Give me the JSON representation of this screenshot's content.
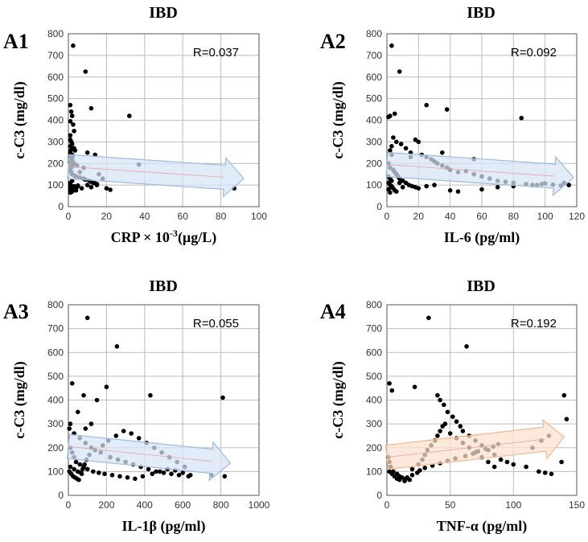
{
  "chart_data": [
    {
      "type": "scatter",
      "panel_label": "A1",
      "title": "IBD",
      "xlabel": "CRP × 10-3(µg/L)",
      "xlabel_base": "CRP × 10",
      "xlabel_sup": "-3",
      "xlabel_rest": "(µg/L)",
      "ylabel": "c-C3 (mg/dl)",
      "xlim": [
        0,
        100
      ],
      "ylim": [
        0,
        800
      ],
      "xticks": [
        "0",
        "20",
        "40",
        "60",
        "80",
        "100"
      ],
      "yticks": [
        "0",
        "100",
        "200",
        "300",
        "400",
        "500",
        "600",
        "700",
        "800"
      ],
      "r_text": "R=0.037",
      "trend": {
        "direction": "down",
        "x": [
          0,
          92
        ],
        "y": [
          185,
          130
        ],
        "color": "#d6e4f5",
        "edge": "#9fbbe0"
      },
      "points": {
        "x": [
          2.5,
          9,
          12,
          32,
          1,
          1.5,
          2,
          1,
          2.5,
          3,
          1,
          1.5,
          1,
          2,
          3.5,
          1,
          2,
          1,
          1.5,
          2,
          3,
          1,
          2,
          1,
          1,
          1.5,
          2,
          3,
          4,
          6,
          8,
          9,
          11,
          12,
          13,
          14,
          15,
          10,
          5,
          3,
          2,
          1,
          1,
          2,
          3,
          4,
          1,
          2,
          1.5,
          1,
          3,
          5,
          7,
          12,
          15,
          20,
          22,
          10,
          8,
          6,
          4,
          2,
          1,
          1,
          2,
          3,
          4,
          37,
          87,
          14,
          16,
          18,
          1,
          2,
          3,
          1.2,
          2.2,
          1.8,
          0.8,
          4.5
        ],
        "y": [
          745,
          625,
          455,
          420,
          470,
          440,
          420,
          395,
          380,
          350,
          330,
          300,
          280,
          270,
          260,
          250,
          240,
          230,
          220,
          210,
          200,
          195,
          185,
          175,
          165,
          160,
          150,
          145,
          140,
          135,
          130,
          125,
          120,
          115,
          110,
          108,
          105,
          100,
          98,
          95,
          92,
          90,
          85,
          80,
          78,
          75,
          72,
          70,
          68,
          65,
          88,
          95,
          85,
          90,
          100,
          85,
          78,
          250,
          180,
          160,
          140,
          120,
          110,
          100,
          95,
          90,
          85,
          195,
          85,
          240,
          150,
          130,
          310,
          290,
          270,
          260,
          230,
          215,
          205,
          190
        ]
      }
    },
    {
      "type": "scatter",
      "panel_label": "A2",
      "title": "IBD",
      "xlabel": "IL-6 (pg/ml)",
      "ylabel": "c-C3 (mg/dl)",
      "xlim": [
        0,
        120
      ],
      "ylim": [
        0,
        800
      ],
      "xticks": [
        "0",
        "20",
        "40",
        "60",
        "80",
        "100",
        "120"
      ],
      "yticks": [
        "0",
        "100",
        "200",
        "300",
        "400",
        "500",
        "600",
        "700",
        "800"
      ],
      "r_text": "R=0.092",
      "trend": {
        "direction": "down",
        "x": [
          0,
          118
        ],
        "y": [
          195,
          135
        ],
        "color": "#d6e4f5",
        "edge": "#9fbbe0"
      },
      "points": {
        "x": [
          3,
          8,
          25,
          85,
          38,
          5,
          2,
          1,
          4,
          6,
          3,
          9,
          12,
          15,
          18,
          20,
          22,
          25,
          28,
          30,
          32,
          35,
          38,
          40,
          45,
          50,
          55,
          60,
          65,
          70,
          75,
          80,
          88,
          95,
          100,
          105,
          110,
          115,
          2,
          3,
          1,
          2,
          4,
          5,
          6,
          7,
          8,
          10,
          12,
          14,
          16,
          18,
          1,
          2,
          3,
          1,
          2,
          3,
          1,
          4,
          5,
          6,
          2,
          3,
          8,
          10,
          20,
          25,
          30,
          40,
          45,
          60,
          70,
          80,
          92,
          98,
          112,
          15,
          35,
          55
        ],
        "y": [
          745,
          625,
          470,
          410,
          450,
          430,
          420,
          415,
          320,
          300,
          280,
          290,
          270,
          250,
          310,
          300,
          240,
          230,
          220,
          210,
          200,
          190,
          180,
          170,
          160,
          165,
          150,
          140,
          130,
          120,
          115,
          110,
          105,
          100,
          108,
          102,
          98,
          100,
          260,
          240,
          200,
          180,
          170,
          160,
          150,
          140,
          130,
          120,
          110,
          100,
          95,
          90,
          140,
          130,
          120,
          110,
          100,
          90,
          80,
          85,
          75,
          70,
          65,
          95,
          110,
          90,
          85,
          95,
          100,
          75,
          70,
          80,
          90,
          95,
          100,
          105,
          110,
          230,
          250,
          220
        ]
      }
    },
    {
      "type": "scatter",
      "panel_label": "A3",
      "title": "IBD",
      "xlabel": "IL-1β (pg/ml)",
      "ylabel": "c-C3 (mg/dl)",
      "xlim": [
        0,
        1000
      ],
      "ylim": [
        0,
        800
      ],
      "xticks": [
        "0",
        "200",
        "400",
        "600",
        "800",
        "1000"
      ],
      "yticks": [
        "0",
        "100",
        "200",
        "300",
        "400",
        "500",
        "600",
        "700",
        "800"
      ],
      "r_text": "R=0.055",
      "trend": {
        "direction": "down",
        "x": [
          0,
          850
        ],
        "y": [
          205,
          135
        ],
        "color": "#d6e4f5",
        "edge": "#9fbbe0"
      },
      "points": {
        "x": [
          100,
          255,
          810,
          430,
          200,
          150,
          80,
          50,
          20,
          10,
          5,
          30,
          60,
          90,
          120,
          170,
          220,
          260,
          300,
          340,
          380,
          420,
          460,
          500,
          540,
          580,
          630,
          750,
          820,
          10,
          20,
          30,
          40,
          60,
          80,
          100,
          130,
          160,
          190,
          230,
          270,
          310,
          350,
          390,
          440,
          480,
          520,
          560,
          600,
          640,
          5,
          15,
          25,
          35,
          45,
          55,
          65,
          75,
          85,
          95,
          110,
          140,
          180,
          210,
          250,
          290,
          330,
          370,
          410,
          450,
          490,
          530,
          570,
          610,
          10,
          30,
          50,
          70,
          90,
          120
        ],
        "y": [
          745,
          625,
          410,
          420,
          455,
          400,
          420,
          350,
          470,
          300,
          280,
          260,
          240,
          220,
          200,
          180,
          160,
          150,
          140,
          130,
          120,
          110,
          100,
          95,
          90,
          85,
          80,
          85,
          80,
          200,
          180,
          160,
          140,
          130,
          120,
          110,
          100,
          95,
          90,
          85,
          80,
          75,
          70,
          80,
          90,
          100,
          110,
          105,
          95,
          85,
          100,
          90,
          80,
          75,
          70,
          65,
          95,
          110,
          130,
          150,
          170,
          190,
          210,
          230,
          250,
          270,
          260,
          240,
          220,
          200,
          180,
          160,
          140,
          120,
          120,
          110,
          100,
          90,
          280,
          300
        ]
      }
    },
    {
      "type": "scatter",
      "panel_label": "A4",
      "title": "IBD",
      "xlabel": "TNF-α (pg/ml)",
      "ylabel": "c-C3 (mg/dl)",
      "xlim": [
        0,
        150
      ],
      "ylim": [
        0,
        800
      ],
      "xticks": [
        "0",
        "50",
        "100",
        "150"
      ],
      "yticks": [
        "0",
        "100",
        "200",
        "300",
        "400",
        "500",
        "600",
        "700",
        "800"
      ],
      "r_text": "R=0.192",
      "trend": {
        "direction": "up",
        "x": [
          0,
          140
        ],
        "y": [
          160,
          245
        ],
        "color": "#fbe1cf",
        "edge": "#f3b78f"
      },
      "points": {
        "x": [
          33,
          63,
          2,
          4,
          22,
          40,
          42,
          45,
          48,
          52,
          55,
          58,
          60,
          65,
          70,
          75,
          80,
          85,
          90,
          95,
          100,
          110,
          120,
          125,
          130,
          140,
          142,
          138,
          1,
          2,
          3,
          5,
          8,
          10,
          12,
          15,
          18,
          20,
          25,
          28,
          30,
          32,
          35,
          38,
          40,
          42,
          44,
          46,
          50,
          55,
          60,
          65,
          70,
          75,
          80,
          85,
          2,
          4,
          6,
          8,
          10,
          14,
          16,
          20,
          24,
          26,
          30,
          36,
          42,
          48,
          54,
          62,
          68,
          72,
          78,
          84,
          88,
          115,
          122,
          128
        ],
        "y": [
          745,
          625,
          470,
          440,
          455,
          420,
          400,
          380,
          350,
          330,
          310,
          290,
          270,
          250,
          230,
          210,
          190,
          170,
          150,
          140,
          130,
          120,
          100,
          95,
          90,
          420,
          320,
          140,
          160,
          140,
          120,
          100,
          90,
          80,
          75,
          70,
          65,
          110,
          130,
          150,
          170,
          190,
          210,
          230,
          250,
          270,
          290,
          300,
          260,
          240,
          220,
          200,
          180,
          160,
          140,
          120,
          100,
          90,
          80,
          70,
          65,
          60,
          75,
          85,
          95,
          105,
          115,
          125,
          135,
          145,
          155,
          165,
          175,
          185,
          195,
          205,
          215,
          200,
          230,
          250
        ]
      }
    }
  ]
}
